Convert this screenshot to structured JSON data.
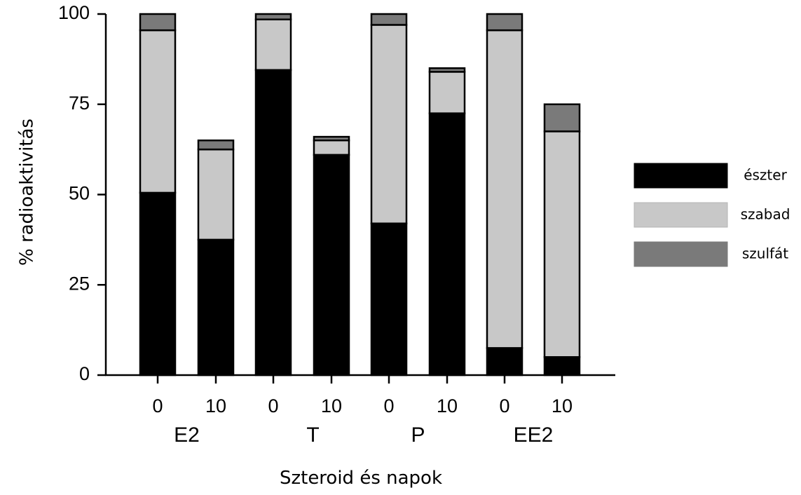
{
  "chart_data": {
    "type": "bar",
    "stacked": true,
    "ylabel": "% radioaktivitás",
    "xlabel": "Szteroid és napok",
    "ylim": [
      0,
      100
    ],
    "yticks": [
      0,
      25,
      50,
      75,
      100
    ],
    "groups": [
      {
        "name": "E2",
        "categories": [
          "0",
          "10"
        ]
      },
      {
        "name": "T",
        "categories": [
          "0",
          "10"
        ]
      },
      {
        "name": "P",
        "categories": [
          "0",
          "10"
        ]
      },
      {
        "name": "EE2",
        "categories": [
          "0",
          "10"
        ]
      }
    ],
    "categories": [
      "0",
      "10",
      "0",
      "10",
      "0",
      "10",
      "0",
      "10"
    ],
    "series": [
      {
        "name": "észter",
        "color": "#000000",
        "values": [
          50.5,
          37.5,
          84.5,
          61,
          42,
          72.5,
          7.5,
          5
        ]
      },
      {
        "name": "szabad",
        "color": "#c8c8c8",
        "values": [
          45,
          25,
          14,
          4,
          55,
          11.5,
          88,
          62.5
        ]
      },
      {
        "name": "szulfát",
        "color": "#7a7a7a",
        "values": [
          4.5,
          2.5,
          1.5,
          1,
          3,
          1,
          4.5,
          7.5
        ]
      }
    ],
    "legend_position": "right",
    "grid": false
  }
}
